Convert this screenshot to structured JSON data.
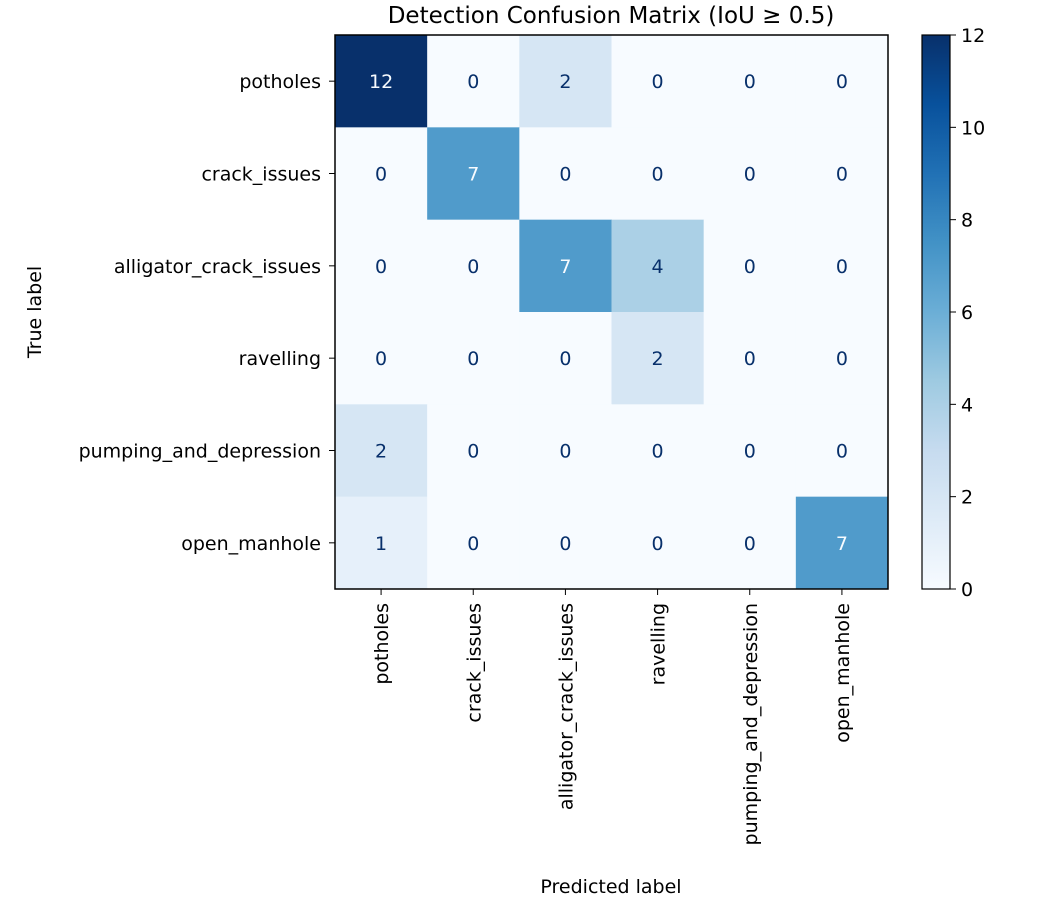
{
  "chart_data": {
    "type": "heatmap",
    "title": "Detection Confusion Matrix (IoU ≥ 0.5)",
    "xlabel": "Predicted label",
    "ylabel": "True label",
    "x_categories": [
      "potholes",
      "crack_issues",
      "alligator_crack_issues",
      "ravelling",
      "pumping_and_depression",
      "open_manhole"
    ],
    "y_categories": [
      "potholes",
      "crack_issues",
      "alligator_crack_issues",
      "ravelling",
      "pumping_and_depression",
      "open_manhole"
    ],
    "values": [
      [
        12,
        0,
        2,
        0,
        0,
        0
      ],
      [
        0,
        7,
        0,
        0,
        0,
        0
      ],
      [
        0,
        0,
        7,
        4,
        0,
        0
      ],
      [
        0,
        0,
        0,
        2,
        0,
        0
      ],
      [
        2,
        0,
        0,
        0,
        0,
        0
      ],
      [
        1,
        0,
        0,
        0,
        0,
        7
      ]
    ],
    "colormap": "Blues",
    "vmin": 0,
    "vmax": 12,
    "colorbar_ticks": [
      0,
      2,
      4,
      6,
      8,
      10,
      12
    ],
    "grid": false
  }
}
